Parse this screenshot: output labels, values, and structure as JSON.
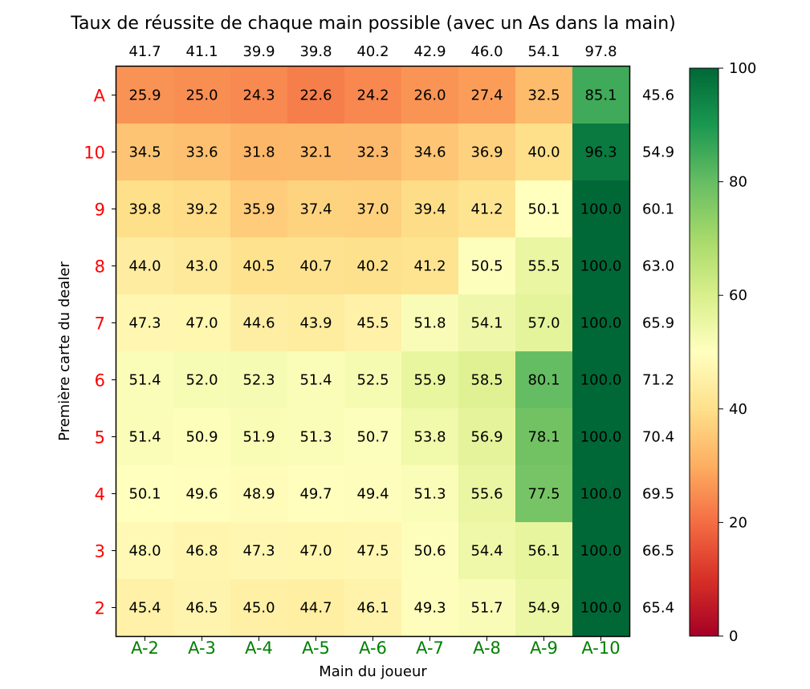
{
  "chart_data": {
    "type": "heatmap",
    "title": "Taux de réussite de chaque main possible (avec un As dans la main)",
    "xlabel": "Main du joueur",
    "ylabel": "Première carte du dealer",
    "x_categories": [
      "A-2",
      "A-3",
      "A-4",
      "A-5",
      "A-6",
      "A-7",
      "A-8",
      "A-9",
      "A-10"
    ],
    "y_categories": [
      "A",
      "10",
      "9",
      "8",
      "7",
      "6",
      "5",
      "4",
      "3",
      "2"
    ],
    "x_tick_color": "#008000",
    "y_tick_color": "#ff0000",
    "values": [
      [
        25.9,
        25.0,
        24.3,
        22.6,
        24.2,
        26.0,
        27.4,
        32.5,
        85.1
      ],
      [
        34.5,
        33.6,
        31.8,
        32.1,
        32.3,
        34.6,
        36.9,
        40.0,
        96.3
      ],
      [
        39.8,
        39.2,
        35.9,
        37.4,
        37.0,
        39.4,
        41.2,
        50.1,
        100.0
      ],
      [
        44.0,
        43.0,
        40.5,
        40.7,
        40.2,
        41.2,
        50.5,
        55.5,
        100.0
      ],
      [
        47.3,
        47.0,
        44.6,
        43.9,
        45.5,
        51.8,
        54.1,
        57.0,
        100.0
      ],
      [
        51.4,
        52.0,
        52.3,
        51.4,
        52.5,
        55.9,
        58.5,
        80.1,
        100.0
      ],
      [
        51.4,
        50.9,
        51.9,
        51.3,
        50.7,
        53.8,
        56.9,
        78.1,
        100.0
      ],
      [
        50.1,
        49.6,
        48.9,
        49.7,
        49.4,
        51.3,
        55.6,
        77.5,
        100.0
      ],
      [
        48.0,
        46.8,
        47.3,
        47.0,
        47.5,
        50.6,
        54.4,
        56.1,
        100.0
      ],
      [
        45.4,
        46.5,
        45.0,
        44.7,
        46.1,
        49.3,
        51.7,
        54.9,
        100.0
      ]
    ],
    "column_totals": [
      41.7,
      41.1,
      39.9,
      39.8,
      40.2,
      42.9,
      46.0,
      54.1,
      97.8
    ],
    "row_totals": [
      45.6,
      54.9,
      60.1,
      63.0,
      65.9,
      71.2,
      70.4,
      69.5,
      66.5,
      65.4
    ],
    "colorbar": {
      "colormap": "RdYlGn",
      "range": [
        0,
        100
      ],
      "ticks": [
        "0",
        "20",
        "40",
        "60",
        "80",
        "100"
      ]
    }
  }
}
